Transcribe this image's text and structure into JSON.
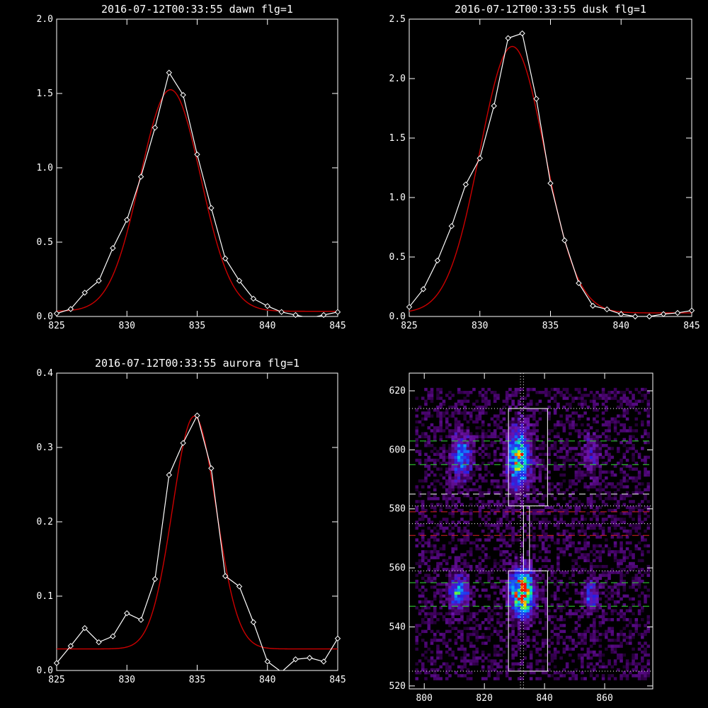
{
  "colors": {
    "background": "#000000",
    "axes": "#ffffff",
    "data_line": "#ffffff",
    "fit_line": "#cc0000",
    "green_dash": "#33dd33",
    "red_dash": "#dd2222"
  },
  "chart_data": [
    {
      "type": "line",
      "title": "2016-07-12T00:33:55 dawn flg=1",
      "xlim": [
        825,
        845
      ],
      "ylim": [
        0,
        2.0
      ],
      "xticks": [
        "825",
        "830",
        "835",
        "840",
        "845"
      ],
      "yticks": [
        "0.0",
        "0.5",
        "1.0",
        "1.5",
        "2.0"
      ],
      "xticks_values": [
        825,
        830,
        835,
        840,
        845
      ],
      "yticks_values": [
        0,
        0.5,
        1.0,
        1.5,
        2.0
      ],
      "series": [
        {
          "x": [
            825,
            826,
            827,
            828,
            829,
            830,
            831,
            832,
            833,
            834,
            835,
            836,
            837,
            838,
            839,
            840,
            841,
            842,
            843,
            844,
            845
          ],
          "values": [
            0.02,
            0.05,
            0.16,
            0.24,
            0.46,
            0.65,
            0.94,
            1.27,
            1.64,
            1.49,
            1.09,
            0.73,
            0.39,
            0.24,
            0.12,
            0.07,
            0.03,
            0.01,
            -0.01,
            0.01,
            0.03
          ]
        },
        {
          "fit": {
            "amplitude": 1.49,
            "center": 833.1,
            "sigma": 2.15,
            "offset": 0.035
          }
        }
      ]
    },
    {
      "type": "line",
      "title": "2016-07-12T00:33:55 dusk flg=1",
      "xlim": [
        825,
        845
      ],
      "ylim": [
        0,
        2.5
      ],
      "xticks": [
        "825",
        "830",
        "835",
        "840",
        "845"
      ],
      "yticks": [
        "0.0",
        "0.5",
        "1.0",
        "1.5",
        "2.0",
        "2.5"
      ],
      "xticks_values": [
        825,
        830,
        835,
        840,
        845
      ],
      "yticks_values": [
        0,
        0.5,
        1.0,
        1.5,
        2.0,
        2.5
      ],
      "series": [
        {
          "x": [
            825,
            826,
            827,
            828,
            829,
            830,
            831,
            832,
            833,
            834,
            835,
            836,
            837,
            838,
            839,
            840,
            841,
            842,
            843,
            844,
            845
          ],
          "values": [
            0.08,
            0.23,
            0.47,
            0.76,
            1.11,
            1.33,
            1.77,
            2.34,
            2.38,
            1.83,
            1.12,
            0.64,
            0.28,
            0.09,
            0.06,
            0.02,
            0.0,
            0.0,
            0.02,
            0.03,
            0.05
          ]
        },
        {
          "fit": {
            "amplitude": 2.24,
            "center": 832.3,
            "sigma": 2.3,
            "offset": 0.03
          }
        }
      ]
    },
    {
      "type": "line",
      "title": "2016-07-12T00:33:55 aurora flg=1",
      "xlim": [
        825,
        845
      ],
      "ylim": [
        0,
        0.4
      ],
      "xticks": [
        "825",
        "830",
        "835",
        "840",
        "845"
      ],
      "yticks": [
        "0.0",
        "0.1",
        "0.2",
        "0.3",
        "0.4"
      ],
      "xticks_values": [
        825,
        830,
        835,
        840,
        845
      ],
      "yticks_values": [
        0,
        0.1,
        0.2,
        0.3,
        0.4
      ],
      "series": [
        {
          "x": [
            825,
            826,
            827,
            828,
            829,
            830,
            831,
            832,
            833,
            834,
            835,
            836,
            837,
            838,
            839,
            840,
            841,
            842,
            843,
            844,
            845
          ],
          "values": [
            0.01,
            0.033,
            0.057,
            0.038,
            0.046,
            0.077,
            0.068,
            0.123,
            0.263,
            0.306,
            0.343,
            0.272,
            0.127,
            0.113,
            0.065,
            0.012,
            -0.002,
            0.015,
            0.017,
            0.012,
            0.043
          ]
        },
        {
          "fit": {
            "amplitude": 0.313,
            "center": 834.8,
            "sigma": 1.55,
            "offset": 0.029
          }
        }
      ]
    },
    {
      "type": "heatmap",
      "title": "",
      "xlim": [
        795,
        876
      ],
      "ylim": [
        519,
        626
      ],
      "xticks": [
        "800",
        "820",
        "840",
        "860"
      ],
      "yticks": [
        "520",
        "540",
        "560",
        "580",
        "600",
        "620"
      ],
      "xticks_values": [
        800,
        820,
        840,
        860
      ],
      "yticks_values": [
        520,
        540,
        560,
        580,
        600,
        620
      ],
      "blobs": [
        {
          "x": 812,
          "y": 597,
          "sx": 2.2,
          "sy": 5.5,
          "peak": 0.45
        },
        {
          "x": 831,
          "y": 597,
          "sx": 2.6,
          "sy": 7.0,
          "peak": 0.7
        },
        {
          "x": 855,
          "y": 598,
          "sx": 2.0,
          "sy": 4.5,
          "peak": 0.22
        },
        {
          "x": 811,
          "y": 551,
          "sx": 2.2,
          "sy": 4.0,
          "peak": 0.5
        },
        {
          "x": 832,
          "y": 551,
          "sx": 2.6,
          "sy": 5.0,
          "peak": 1.0
        },
        {
          "x": 855,
          "y": 550,
          "sx": 1.8,
          "sy": 3.5,
          "peak": 0.33
        }
      ],
      "boxes": [
        {
          "x0": 828,
          "x1": 841,
          "y0": 581,
          "y1": 614
        },
        {
          "x0": 828,
          "x1": 841,
          "y0": 525,
          "y1": 559
        },
        {
          "x0": 833,
          "x1": 835,
          "y0": 559,
          "y1": 581
        }
      ],
      "hlines": [
        {
          "y": 614,
          "style": "dotted",
          "color": "#ffffff"
        },
        {
          "y": 603,
          "style": "dashed",
          "color": "#33dd33"
        },
        {
          "y": 595,
          "style": "dashed",
          "color": "#33dd33"
        },
        {
          "y": 585,
          "style": "dashed",
          "color": "#ffffff"
        },
        {
          "y": 581,
          "style": "dotted",
          "color": "#ffffff"
        },
        {
          "y": 579,
          "style": "dashed",
          "color": "#dd2222"
        },
        {
          "y": 575,
          "style": "dotted",
          "color": "#ffffff"
        },
        {
          "y": 571,
          "style": "dashed",
          "color": "#dd2222"
        },
        {
          "y": 559,
          "style": "dotted",
          "color": "#ffffff"
        },
        {
          "y": 555,
          "style": "dashed",
          "color": "#33dd33"
        },
        {
          "y": 547,
          "style": "dashed",
          "color": "#33dd33"
        },
        {
          "y": 525,
          "style": "dotted",
          "color": "#ffffff"
        }
      ],
      "vlines": [
        {
          "x": 832,
          "style": "dotted",
          "color": "#ffffff"
        },
        {
          "x": 833,
          "style": "dotted",
          "color": "#ffffff"
        }
      ]
    }
  ]
}
